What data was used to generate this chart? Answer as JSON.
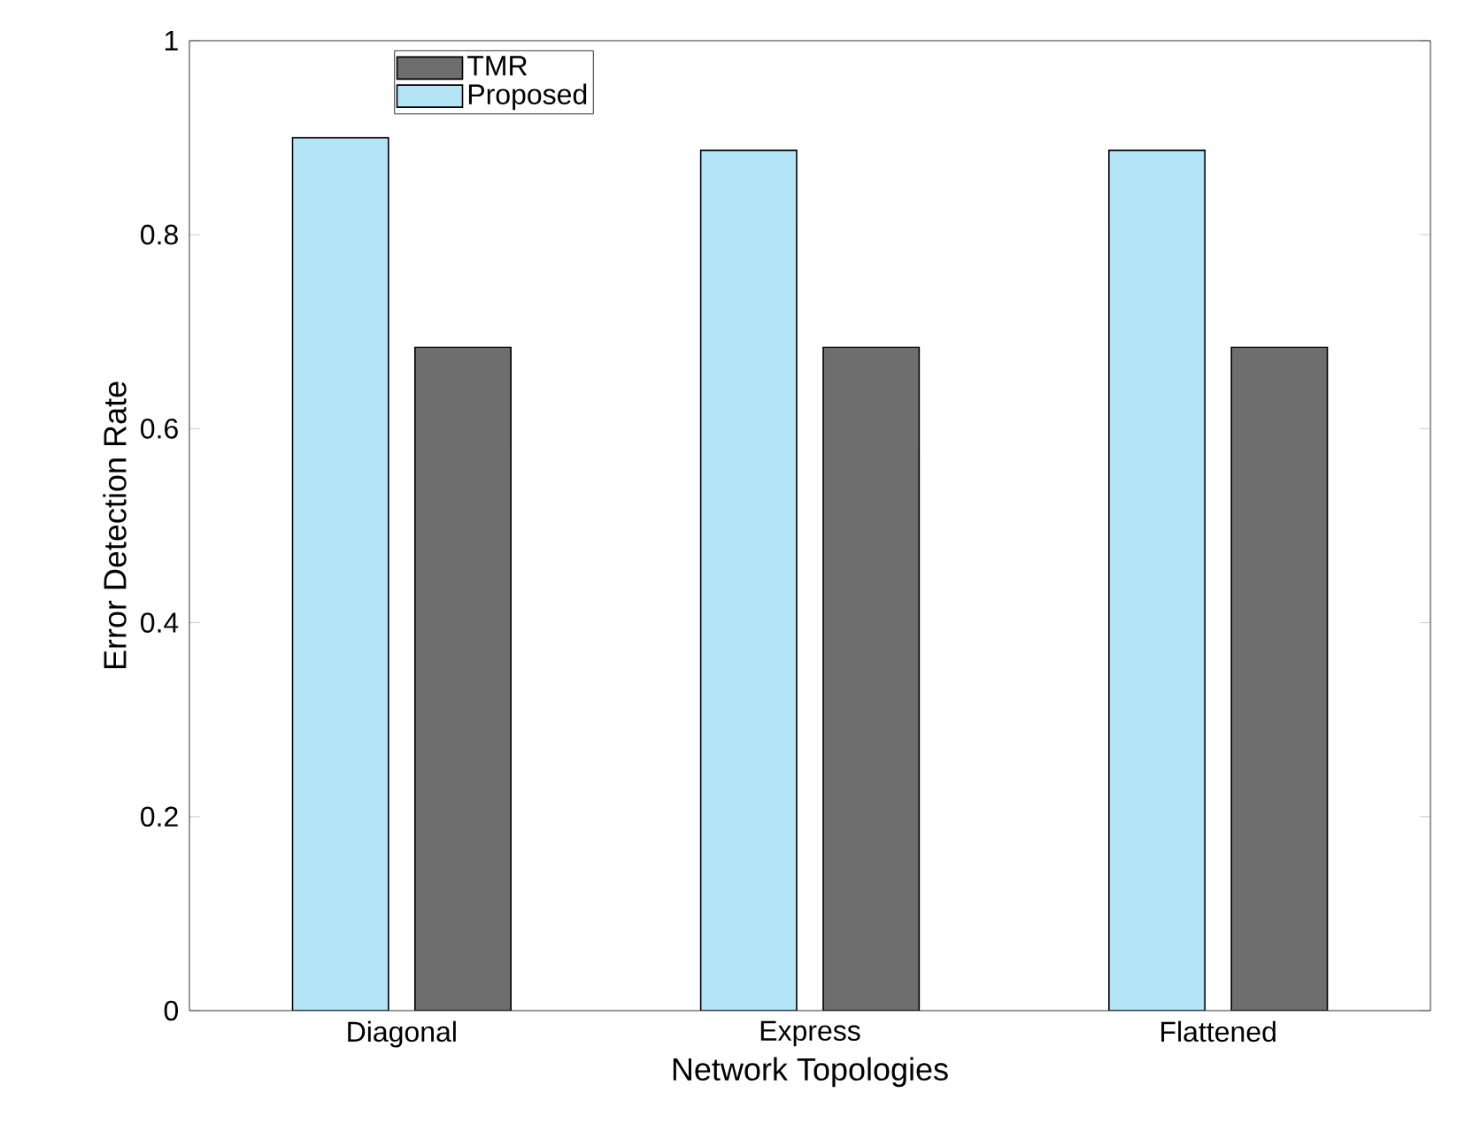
{
  "chart_data": {
    "type": "bar",
    "xlabel": "Network Topologies",
    "ylabel": "Error Detection Rate",
    "categories": [
      "Diagonal",
      "Express",
      "Flattened"
    ],
    "series": [
      {
        "name": "Proposed",
        "color": "#b3e5f7",
        "values": [
          0.9,
          0.887,
          0.887
        ]
      },
      {
        "name": "TMR",
        "color": "#6e6e6e",
        "values": [
          0.684,
          0.684,
          0.684
        ]
      }
    ],
    "ylim": [
      0,
      1
    ],
    "yticks": [
      0,
      0.2,
      0.4,
      0.6,
      0.8,
      1
    ],
    "grid": false,
    "legend": "top left"
  }
}
